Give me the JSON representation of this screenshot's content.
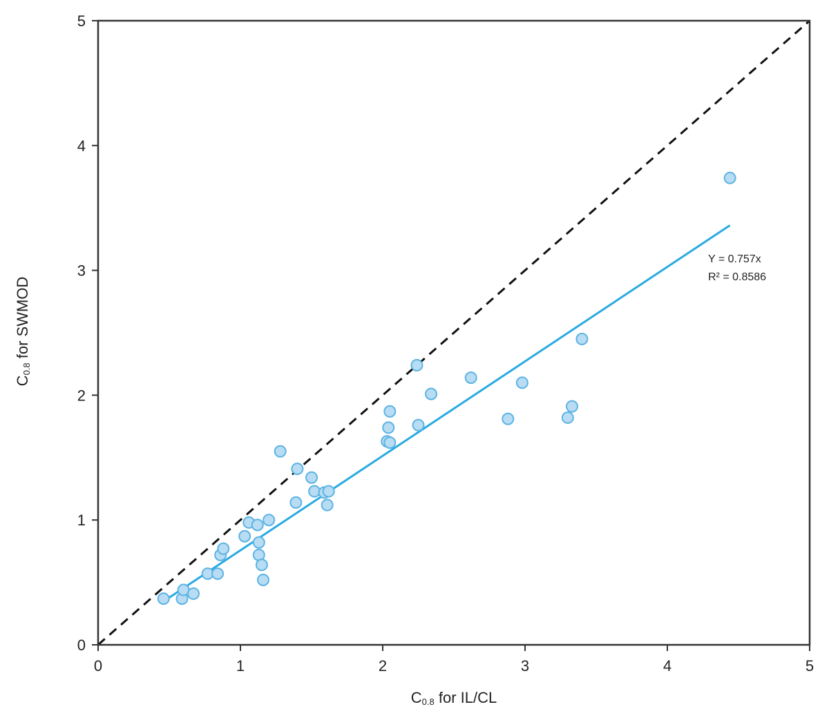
{
  "chart_data": {
    "type": "scatter",
    "xlabel": {
      "main": "C",
      "sub": "0.8",
      "rest": " for IL/CL"
    },
    "ylabel": {
      "main": "C",
      "sub": "0.8",
      "rest": " for SWMOD"
    },
    "xlim": [
      0,
      5
    ],
    "ylim": [
      0,
      5
    ],
    "xticks": [
      "0",
      "1",
      "2",
      "3",
      "4",
      "5"
    ],
    "yticks": [
      "0",
      "1",
      "2",
      "3",
      "4",
      "5"
    ],
    "grid": false,
    "points": [
      {
        "x": 0.46,
        "y": 0.37
      },
      {
        "x": 0.59,
        "y": 0.37
      },
      {
        "x": 0.6,
        "y": 0.44
      },
      {
        "x": 0.67,
        "y": 0.41
      },
      {
        "x": 0.77,
        "y": 0.57
      },
      {
        "x": 0.84,
        "y": 0.57
      },
      {
        "x": 0.86,
        "y": 0.72
      },
      {
        "x": 0.88,
        "y": 0.77
      },
      {
        "x": 1.03,
        "y": 0.87
      },
      {
        "x": 1.06,
        "y": 0.98
      },
      {
        "x": 1.12,
        "y": 0.96
      },
      {
        "x": 1.13,
        "y": 0.82
      },
      {
        "x": 1.13,
        "y": 0.72
      },
      {
        "x": 1.15,
        "y": 0.64
      },
      {
        "x": 1.16,
        "y": 0.52
      },
      {
        "x": 1.2,
        "y": 1.0
      },
      {
        "x": 1.28,
        "y": 1.55
      },
      {
        "x": 1.39,
        "y": 1.14
      },
      {
        "x": 1.4,
        "y": 1.41
      },
      {
        "x": 1.5,
        "y": 1.34
      },
      {
        "x": 1.52,
        "y": 1.23
      },
      {
        "x": 1.59,
        "y": 1.22
      },
      {
        "x": 1.61,
        "y": 1.12
      },
      {
        "x": 1.62,
        "y": 1.23
      },
      {
        "x": 2.03,
        "y": 1.63
      },
      {
        "x": 2.04,
        "y": 1.74
      },
      {
        "x": 2.05,
        "y": 1.87
      },
      {
        "x": 2.05,
        "y": 1.62
      },
      {
        "x": 2.24,
        "y": 2.24
      },
      {
        "x": 2.25,
        "y": 1.76
      },
      {
        "x": 2.34,
        "y": 2.01
      },
      {
        "x": 2.62,
        "y": 2.14
      },
      {
        "x": 2.88,
        "y": 1.81
      },
      {
        "x": 2.98,
        "y": 2.1
      },
      {
        "x": 3.3,
        "y": 1.82
      },
      {
        "x": 3.33,
        "y": 1.91
      },
      {
        "x": 3.4,
        "y": 2.45
      },
      {
        "x": 4.44,
        "y": 3.74
      }
    ],
    "trend_line": {
      "slope": 0.757,
      "x_range": [
        0.44,
        4.44
      ]
    },
    "identity_line": {
      "slope": 1,
      "x_range": [
        0,
        5
      ]
    },
    "annotations": [
      "Y = 0.757x",
      "R² = 0.8586"
    ],
    "colors": {
      "point_fill": "#b7dcf3",
      "point_stroke": "#5cb3e3",
      "trend_line": "#29aae1",
      "identity_line": "#111111",
      "axes": "#333333"
    }
  }
}
